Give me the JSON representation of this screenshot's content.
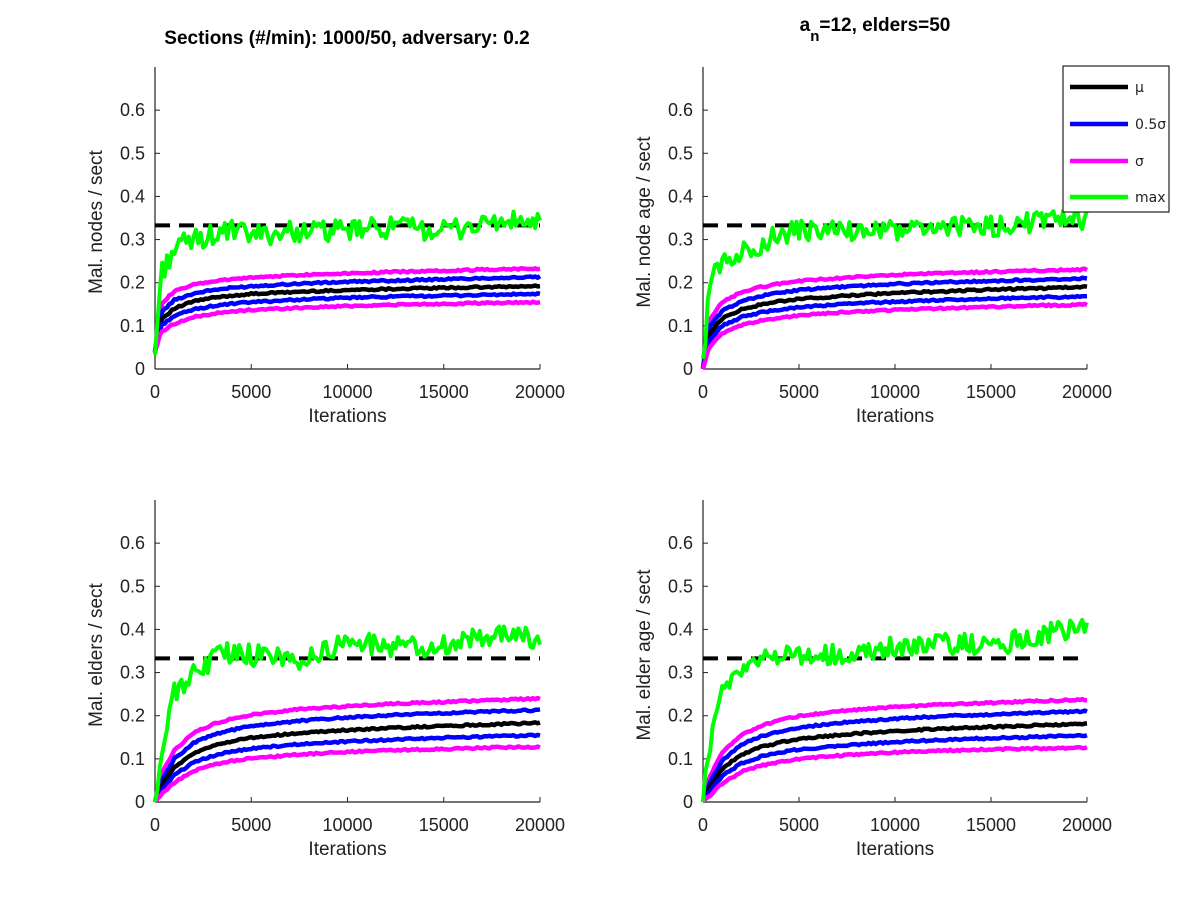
{
  "figure": {
    "title_left": "Sections (#/min): 1000/50, adversary: 0.2",
    "title_right_main": "a",
    "title_right_sub": "n",
    "title_right_rest": "=12, elders=50"
  },
  "colors": {
    "mu": "#000000",
    "half_sigma": "#0000ff",
    "sigma": "#ff00ff",
    "max": "#00ff00",
    "threshold": "#000000"
  },
  "legend": {
    "placement": "top-right of top-right panel",
    "items": [
      {
        "label": "μ",
        "color_key": "mu"
      },
      {
        "label": "0.5σ",
        "color_key": "half_sigma"
      },
      {
        "label": "σ",
        "color_key": "sigma"
      },
      {
        "label": "max",
        "color_key": "max"
      }
    ]
  },
  "chart_data": [
    {
      "type": "line",
      "panel": "top-left",
      "xlabel": "Iterations",
      "ylabel": "Mal. nodes / sect",
      "xlim": [
        0,
        20000
      ],
      "ylim": [
        0,
        0.7
      ],
      "xticks": [
        0,
        5000,
        10000,
        15000,
        20000
      ],
      "yticks": [
        0,
        0.1,
        0.2,
        0.3,
        0.4,
        0.5,
        0.6
      ],
      "threshold": 0.333,
      "x": [
        0,
        300,
        1000,
        2000,
        3000,
        4000,
        5000,
        7500,
        10000,
        12500,
        15000,
        17500,
        20000
      ],
      "series": [
        {
          "key": "sigma_upper",
          "color_key": "sigma",
          "values": [
            0.04,
            0.15,
            0.18,
            0.195,
            0.203,
            0.208,
            0.212,
            0.218,
            0.222,
            0.225,
            0.228,
            0.231,
            0.233
          ]
        },
        {
          "key": "half_sigma_upper",
          "color_key": "half_sigma",
          "values": [
            0.04,
            0.13,
            0.16,
            0.175,
            0.183,
            0.188,
            0.192,
            0.198,
            0.202,
            0.205,
            0.208,
            0.211,
            0.213
          ]
        },
        {
          "key": "mu",
          "color_key": "mu",
          "values": [
            0.04,
            0.115,
            0.14,
            0.157,
            0.165,
            0.17,
            0.174,
            0.179,
            0.183,
            0.186,
            0.188,
            0.19,
            0.192
          ]
        },
        {
          "key": "half_sigma_lower",
          "color_key": "half_sigma",
          "values": [
            0.04,
            0.1,
            0.123,
            0.138,
            0.146,
            0.151,
            0.155,
            0.161,
            0.165,
            0.168,
            0.17,
            0.172,
            0.174
          ]
        },
        {
          "key": "sigma_lower",
          "color_key": "sigma",
          "values": [
            0.04,
            0.085,
            0.105,
            0.12,
            0.128,
            0.133,
            0.137,
            0.142,
            0.146,
            0.149,
            0.151,
            0.153,
            0.155
          ]
        },
        {
          "key": "max",
          "color_key": "max",
          "values": [
            0.03,
            0.22,
            0.28,
            0.3,
            0.31,
            0.32,
            0.31,
            0.32,
            0.32,
            0.33,
            0.32,
            0.34,
            0.34
          ]
        }
      ]
    },
    {
      "type": "line",
      "panel": "top-right",
      "xlabel": "Iterations",
      "ylabel": "Mal. node age / sect",
      "xlim": [
        0,
        20000
      ],
      "ylim": [
        0,
        0.7
      ],
      "xticks": [
        0,
        5000,
        10000,
        15000,
        20000
      ],
      "yticks": [
        0,
        0.1,
        0.2,
        0.3,
        0.4,
        0.5,
        0.6
      ],
      "threshold": 0.333,
      "x": [
        0,
        300,
        1000,
        2000,
        3000,
        4000,
        5000,
        7500,
        10000,
        12500,
        15000,
        17500,
        20000
      ],
      "series": [
        {
          "key": "sigma_upper",
          "color_key": "sigma",
          "values": [
            0.0,
            0.11,
            0.155,
            0.178,
            0.19,
            0.198,
            0.204,
            0.212,
            0.218,
            0.222,
            0.225,
            0.228,
            0.231
          ]
        },
        {
          "key": "half_sigma_upper",
          "color_key": "half_sigma",
          "values": [
            0.0,
            0.095,
            0.135,
            0.157,
            0.169,
            0.177,
            0.183,
            0.191,
            0.197,
            0.201,
            0.204,
            0.207,
            0.21
          ]
        },
        {
          "key": "mu",
          "color_key": "mu",
          "values": [
            0.0,
            0.08,
            0.117,
            0.138,
            0.149,
            0.157,
            0.162,
            0.17,
            0.176,
            0.18,
            0.184,
            0.187,
            0.19
          ]
        },
        {
          "key": "half_sigma_lower",
          "color_key": "half_sigma",
          "values": [
            0.0,
            0.065,
            0.1,
            0.12,
            0.131,
            0.138,
            0.143,
            0.151,
            0.156,
            0.16,
            0.163,
            0.166,
            0.168
          ]
        },
        {
          "key": "sigma_lower",
          "color_key": "sigma",
          "values": [
            0.0,
            0.05,
            0.082,
            0.101,
            0.112,
            0.119,
            0.124,
            0.132,
            0.137,
            0.141,
            0.144,
            0.147,
            0.149
          ]
        },
        {
          "key": "max",
          "color_key": "max",
          "values": [
            0.0,
            0.2,
            0.25,
            0.27,
            0.29,
            0.31,
            0.32,
            0.32,
            0.32,
            0.33,
            0.33,
            0.34,
            0.35
          ]
        }
      ]
    },
    {
      "type": "line",
      "panel": "bottom-left",
      "xlabel": "Iterations",
      "ylabel": "Mal. elders / sect",
      "xlim": [
        0,
        20000
      ],
      "ylim": [
        0,
        0.7
      ],
      "xticks": [
        0,
        5000,
        10000,
        15000,
        20000
      ],
      "yticks": [
        0,
        0.1,
        0.2,
        0.3,
        0.4,
        0.5,
        0.6
      ],
      "threshold": 0.333,
      "x": [
        0,
        300,
        1000,
        2000,
        3000,
        4000,
        5000,
        7500,
        10000,
        12500,
        15000,
        17500,
        20000
      ],
      "series": [
        {
          "key": "sigma_upper",
          "color_key": "sigma",
          "values": [
            0.0,
            0.06,
            0.12,
            0.16,
            0.18,
            0.193,
            0.202,
            0.215,
            0.222,
            0.228,
            0.232,
            0.236,
            0.24
          ]
        },
        {
          "key": "half_sigma_upper",
          "color_key": "half_sigma",
          "values": [
            0.0,
            0.045,
            0.1,
            0.137,
            0.155,
            0.167,
            0.176,
            0.188,
            0.196,
            0.202,
            0.206,
            0.21,
            0.213
          ]
        },
        {
          "key": "mu",
          "color_key": "mu",
          "values": [
            0.0,
            0.035,
            0.08,
            0.113,
            0.13,
            0.141,
            0.149,
            0.16,
            0.167,
            0.172,
            0.176,
            0.18,
            0.183
          ]
        },
        {
          "key": "half_sigma_lower",
          "color_key": "half_sigma",
          "values": [
            0.0,
            0.025,
            0.062,
            0.092,
            0.107,
            0.117,
            0.124,
            0.134,
            0.14,
            0.145,
            0.149,
            0.152,
            0.155
          ]
        },
        {
          "key": "sigma_lower",
          "color_key": "sigma",
          "values": [
            0.0,
            0.015,
            0.045,
            0.072,
            0.086,
            0.095,
            0.101,
            0.11,
            0.116,
            0.12,
            0.123,
            0.126,
            0.128
          ]
        },
        {
          "key": "max",
          "color_key": "max",
          "values": [
            0.0,
            0.1,
            0.25,
            0.3,
            0.33,
            0.35,
            0.34,
            0.33,
            0.37,
            0.36,
            0.36,
            0.39,
            0.38
          ]
        }
      ]
    },
    {
      "type": "line",
      "panel": "bottom-right",
      "xlabel": "Iterations",
      "ylabel": "Mal. elder age / sect",
      "xlim": [
        0,
        20000
      ],
      "ylim": [
        0,
        0.7
      ],
      "xticks": [
        0,
        5000,
        10000,
        15000,
        20000
      ],
      "yticks": [
        0,
        0.1,
        0.2,
        0.3,
        0.4,
        0.5,
        0.6
      ],
      "threshold": 0.333,
      "x": [
        0,
        300,
        1000,
        2000,
        3000,
        4000,
        5000,
        7500,
        10000,
        12500,
        15000,
        17500,
        20000
      ],
      "series": [
        {
          "key": "sigma_upper",
          "color_key": "sigma",
          "values": [
            0.0,
            0.055,
            0.115,
            0.155,
            0.176,
            0.19,
            0.199,
            0.212,
            0.22,
            0.226,
            0.23,
            0.234,
            0.237
          ]
        },
        {
          "key": "half_sigma_upper",
          "color_key": "half_sigma",
          "values": [
            0.0,
            0.04,
            0.095,
            0.133,
            0.152,
            0.164,
            0.173,
            0.185,
            0.193,
            0.199,
            0.203,
            0.207,
            0.21
          ]
        },
        {
          "key": "mu",
          "color_key": "mu",
          "values": [
            0.0,
            0.03,
            0.077,
            0.11,
            0.127,
            0.138,
            0.146,
            0.157,
            0.165,
            0.17,
            0.174,
            0.178,
            0.181
          ]
        },
        {
          "key": "half_sigma_lower",
          "color_key": "half_sigma",
          "values": [
            0.0,
            0.02,
            0.06,
            0.09,
            0.105,
            0.115,
            0.122,
            0.132,
            0.139,
            0.144,
            0.148,
            0.151,
            0.154
          ]
        },
        {
          "key": "sigma_lower",
          "color_key": "sigma",
          "values": [
            0.0,
            0.012,
            0.043,
            0.07,
            0.084,
            0.093,
            0.1,
            0.109,
            0.115,
            0.119,
            0.122,
            0.124,
            0.126
          ]
        },
        {
          "key": "max",
          "color_key": "max",
          "values": [
            0.0,
            0.12,
            0.26,
            0.31,
            0.33,
            0.34,
            0.34,
            0.34,
            0.36,
            0.37,
            0.36,
            0.39,
            0.4
          ]
        }
      ]
    }
  ]
}
